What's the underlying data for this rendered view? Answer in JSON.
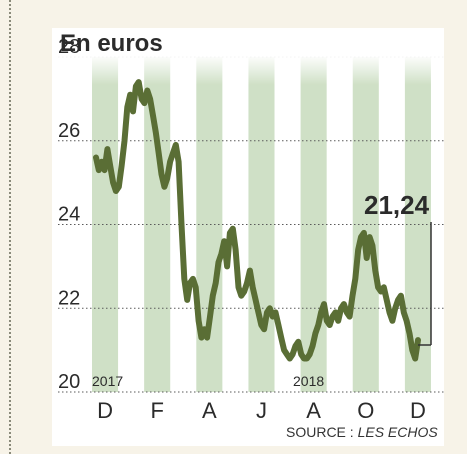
{
  "chart_data": {
    "type": "line",
    "title": "En euros",
    "source_prefix": "SOURCE : ",
    "source_name": "LES ECHOS",
    "ylim": [
      20,
      28
    ],
    "yticks": [
      20,
      22,
      24,
      26,
      28
    ],
    "ytick_labels": [
      "20",
      "22",
      "24",
      "26",
      "28"
    ],
    "month_labels": [
      "D",
      "F",
      "A",
      "J",
      "A",
      "O",
      "D"
    ],
    "year_labels": [
      "2017",
      "2018"
    ],
    "last_value_label": "21,24",
    "colors": {
      "line": "#5a6e35",
      "stripe": "#cfe0c6",
      "grid": "#5a5a5a",
      "text": "#2b2b2b",
      "background": "#f7f3e8"
    },
    "series": [
      {
        "values": [
          25.6,
          25.3,
          25.5,
          25.3,
          25.8,
          25.4,
          25.0,
          24.8,
          24.9,
          25.4,
          26.0,
          26.8,
          27.1,
          26.7,
          27.3,
          27.4,
          27.0,
          26.9,
          27.2,
          27.0,
          26.6,
          26.2,
          25.7,
          25.2,
          24.9,
          25.1,
          25.5,
          25.7,
          25.9,
          25.5,
          24.0,
          22.7,
          22.2,
          22.6,
          22.7,
          22.5,
          21.7,
          21.3,
          21.5,
          21.3,
          21.8,
          22.3,
          22.6,
          23.1,
          23.3,
          23.6,
          23.0,
          23.8,
          23.9,
          23.4,
          22.5,
          22.3,
          22.4,
          22.6,
          22.9,
          22.5,
          22.2,
          21.9,
          21.6,
          21.5,
          21.9,
          22.0,
          21.8,
          21.9,
          21.6,
          21.3,
          21.0,
          20.9,
          20.8,
          20.9,
          21.1,
          21.2,
          20.9,
          20.8,
          20.8,
          20.9,
          21.1,
          21.4,
          21.6,
          21.9,
          22.1,
          21.7,
          21.6,
          21.8,
          21.9,
          21.7,
          22.0,
          22.1,
          21.9,
          21.8,
          22.3,
          22.7,
          23.4,
          23.7,
          23.8,
          23.2,
          23.7,
          23.5,
          22.9,
          22.5,
          22.4,
          22.5,
          22.2,
          21.9,
          21.7,
          22.0,
          22.2,
          22.3,
          21.9,
          21.7,
          21.4,
          21.0,
          20.8,
          21.24
        ]
      }
    ]
  }
}
